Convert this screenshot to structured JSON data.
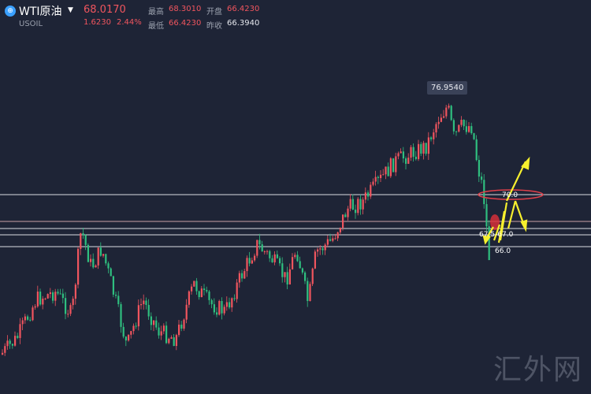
{
  "header": {
    "logo_glyph": "⊕",
    "symbol": "WTI原油",
    "dropdown_glyph": "▼",
    "ticker": "USOIL",
    "price": "68.0170",
    "change": "1.6230",
    "change_pct": "2.44%",
    "stats": [
      {
        "label": "最高",
        "value": "68.3010"
      },
      {
        "label": "开盘",
        "value": "66.4230"
      },
      {
        "label": "最低",
        "value": "66.4230"
      },
      {
        "label": "昨收",
        "value": "66.3940"
      }
    ]
  },
  "chart": {
    "peak_label": "76.9540",
    "level_70": "70.0",
    "level_675": "67.5-67.0",
    "level_66": "66.0",
    "watermark": "汇外网",
    "colors": {
      "background": "#1e2436",
      "up": "#f0555e",
      "down": "#2fbf7f",
      "level_line": "#d9dce3",
      "arrow": "#f7f02e",
      "circle": "#e0404a"
    }
  },
  "chart_data": {
    "type": "candlestick",
    "title": "",
    "xlabel": "",
    "ylabel": "",
    "price_levels": [
      70.0,
      67.5,
      67.0,
      66.0
    ],
    "peak": 76.954
  }
}
